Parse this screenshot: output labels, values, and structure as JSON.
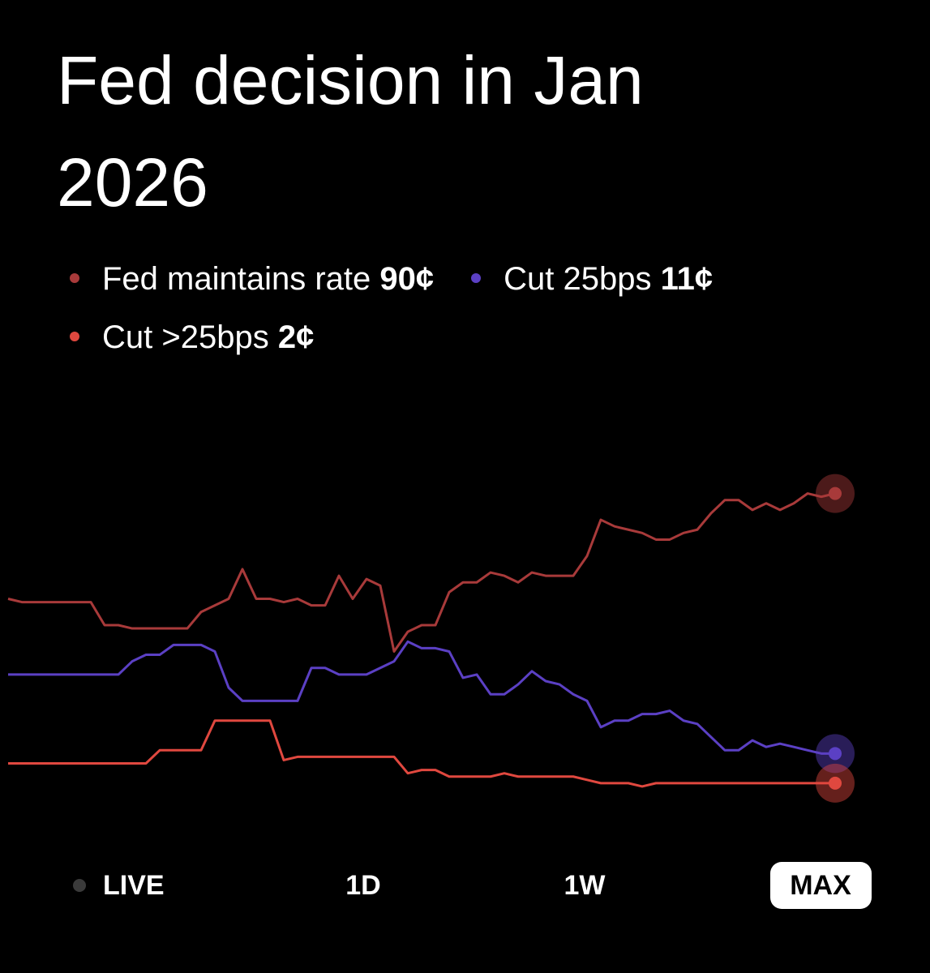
{
  "chart_data": {
    "type": "line",
    "title": "Fed decision in Jan 2026",
    "ylim": [
      0,
      100
    ],
    "series": [
      {
        "name": "Fed maintains rate",
        "end_label": "90¢",
        "color": "#a83a3a",
        "values": [
          58,
          57,
          57,
          57,
          57,
          57,
          57,
          50,
          50,
          49,
          49,
          49,
          49,
          49,
          54,
          56,
          58,
          67,
          58,
          58,
          57,
          58,
          56,
          56,
          65,
          58,
          64,
          62,
          42,
          48,
          50,
          50,
          60,
          63,
          63,
          66,
          65,
          63,
          66,
          65,
          65,
          65,
          71,
          82,
          80,
          79,
          78,
          76,
          76,
          78,
          79,
          84,
          88,
          88,
          85,
          87,
          85,
          87,
          90,
          89,
          90
        ]
      },
      {
        "name": "Cut 25bps",
        "end_label": "11¢",
        "color": "#5b40c4",
        "values": [
          35,
          35,
          35,
          35,
          35,
          35,
          35,
          35,
          35,
          39,
          41,
          41,
          44,
          44,
          44,
          42,
          31,
          27,
          27,
          27,
          27,
          27,
          37,
          37,
          35,
          35,
          35,
          37,
          39,
          45,
          43,
          43,
          42,
          34,
          35,
          29,
          29,
          32,
          36,
          33,
          32,
          29,
          27,
          19,
          21,
          21,
          23,
          23,
          24,
          21,
          20,
          16,
          12,
          12,
          15,
          13,
          14,
          13,
          12,
          11,
          11
        ]
      },
      {
        "name": "Cut >25bps",
        "end_label": "2¢",
        "color": "#e0483f",
        "values": [
          8,
          8,
          8,
          8,
          8,
          8,
          8,
          8,
          8,
          8,
          8,
          12,
          12,
          12,
          12,
          21,
          21,
          21,
          21,
          21,
          9,
          10,
          10,
          10,
          10,
          10,
          10,
          10,
          10,
          5,
          6,
          6,
          4,
          4,
          4,
          4,
          5,
          4,
          4,
          4,
          4,
          4,
          3,
          2,
          2,
          2,
          1,
          2,
          2,
          2,
          2,
          2,
          2,
          2,
          2,
          2,
          2,
          2,
          2,
          2,
          2
        ]
      }
    ],
    "ranges": [
      "LIVE",
      "1D",
      "1W",
      "MAX"
    ],
    "selected_range": "MAX"
  }
}
